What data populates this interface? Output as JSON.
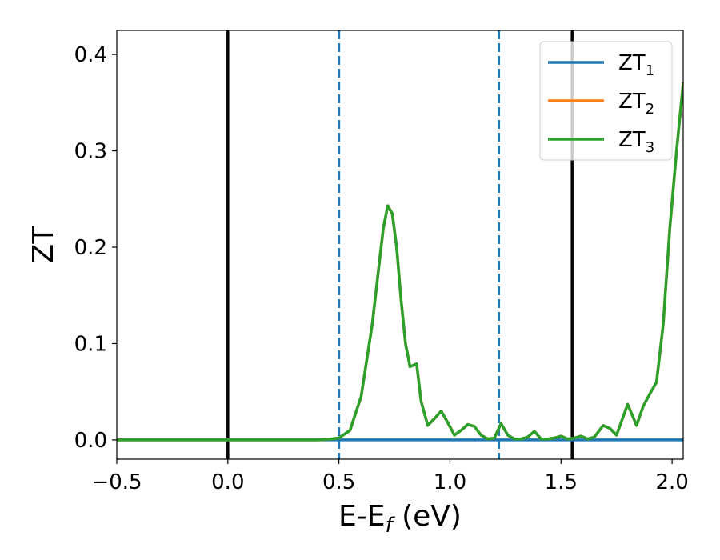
{
  "chart_data": {
    "type": "line",
    "xlabel": "E-E",
    "xlabel_sub": "f",
    "xlabel_unit": " (eV)",
    "ylabel": "ZT",
    "xlim": [
      -0.5,
      2.05
    ],
    "ylim": [
      -0.02,
      0.425
    ],
    "xticks": [
      -0.5,
      0.0,
      0.5,
      1.0,
      1.5,
      2.0
    ],
    "xtick_labels": [
      "−0.5",
      "0.0",
      "0.5",
      "1.0",
      "1.5",
      "2.0"
    ],
    "yticks": [
      0.0,
      0.1,
      0.2,
      0.3,
      0.4
    ],
    "ytick_labels": [
      "0.0",
      "0.1",
      "0.2",
      "0.3",
      "0.4"
    ],
    "grid": false,
    "legend_position": "top-right",
    "vlines": [
      {
        "x": 0.0,
        "style": "solid",
        "color": "#000000"
      },
      {
        "x": 1.55,
        "style": "solid",
        "color": "#000000"
      },
      {
        "x": 0.5,
        "style": "dashed",
        "color": "#1f77b4"
      },
      {
        "x": 1.22,
        "style": "dashed",
        "color": "#1f77b4"
      }
    ],
    "series": [
      {
        "name": "ZT",
        "name_sub": "1",
        "color": "#1f77b4",
        "x": [
          -0.5,
          2.05
        ],
        "y": [
          0.0,
          0.0
        ]
      },
      {
        "name": "ZT",
        "name_sub": "2",
        "color": "#ff7f0e",
        "x": [
          -0.5,
          0.0,
          0.4,
          0.45,
          0.5,
          0.55,
          0.6,
          0.65,
          0.68,
          0.7,
          0.72,
          0.74,
          0.76,
          0.78,
          0.8,
          0.82,
          0.85,
          0.87,
          0.9,
          0.93,
          0.96,
          0.99,
          1.02,
          1.05,
          1.08,
          1.11,
          1.14,
          1.17,
          1.2,
          1.23,
          1.26,
          1.29,
          1.32,
          1.35,
          1.38,
          1.41,
          1.44,
          1.47,
          1.5,
          1.53,
          1.56,
          1.59,
          1.62,
          1.65,
          1.69,
          1.72,
          1.75,
          1.8,
          1.84,
          1.87,
          1.9,
          1.93,
          1.96,
          1.99,
          2.02,
          2.05
        ],
        "y": [
          0.0,
          0.0,
          0.0,
          0.0005,
          0.002,
          0.01,
          0.045,
          0.12,
          0.18,
          0.22,
          0.243,
          0.235,
          0.2,
          0.145,
          0.1,
          0.076,
          0.079,
          0.04,
          0.015,
          0.022,
          0.03,
          0.018,
          0.005,
          0.01,
          0.016,
          0.014,
          0.005,
          0.001,
          0.002,
          0.017,
          0.005,
          0.001,
          0.001,
          0.003,
          0.009,
          0.001,
          0.001,
          0.002,
          0.004,
          0.001,
          0.002,
          0.004,
          0.001,
          0.003,
          0.015,
          0.012,
          0.005,
          0.037,
          0.015,
          0.035,
          0.048,
          0.06,
          0.12,
          0.22,
          0.3,
          0.37
        ]
      },
      {
        "name": "ZT",
        "name_sub": "3",
        "color": "#2ca02c",
        "x": [
          -0.5,
          0.0,
          0.4,
          0.45,
          0.5,
          0.55,
          0.6,
          0.65,
          0.68,
          0.7,
          0.72,
          0.74,
          0.76,
          0.78,
          0.8,
          0.82,
          0.85,
          0.87,
          0.9,
          0.93,
          0.96,
          0.99,
          1.02,
          1.05,
          1.08,
          1.11,
          1.14,
          1.17,
          1.2,
          1.23,
          1.26,
          1.29,
          1.32,
          1.35,
          1.38,
          1.41,
          1.44,
          1.47,
          1.5,
          1.53,
          1.56,
          1.59,
          1.62,
          1.65,
          1.69,
          1.72,
          1.75,
          1.8,
          1.84,
          1.87,
          1.9,
          1.93,
          1.96,
          1.99,
          2.02,
          2.05
        ],
        "y": [
          0.0,
          0.0,
          0.0,
          0.0005,
          0.002,
          0.01,
          0.045,
          0.12,
          0.18,
          0.22,
          0.243,
          0.235,
          0.2,
          0.145,
          0.1,
          0.076,
          0.079,
          0.04,
          0.015,
          0.022,
          0.03,
          0.018,
          0.005,
          0.01,
          0.016,
          0.014,
          0.005,
          0.001,
          0.002,
          0.017,
          0.005,
          0.001,
          0.001,
          0.003,
          0.009,
          0.001,
          0.001,
          0.002,
          0.004,
          0.001,
          0.002,
          0.004,
          0.001,
          0.003,
          0.015,
          0.012,
          0.005,
          0.037,
          0.015,
          0.035,
          0.048,
          0.06,
          0.12,
          0.22,
          0.3,
          0.37
        ]
      }
    ]
  }
}
